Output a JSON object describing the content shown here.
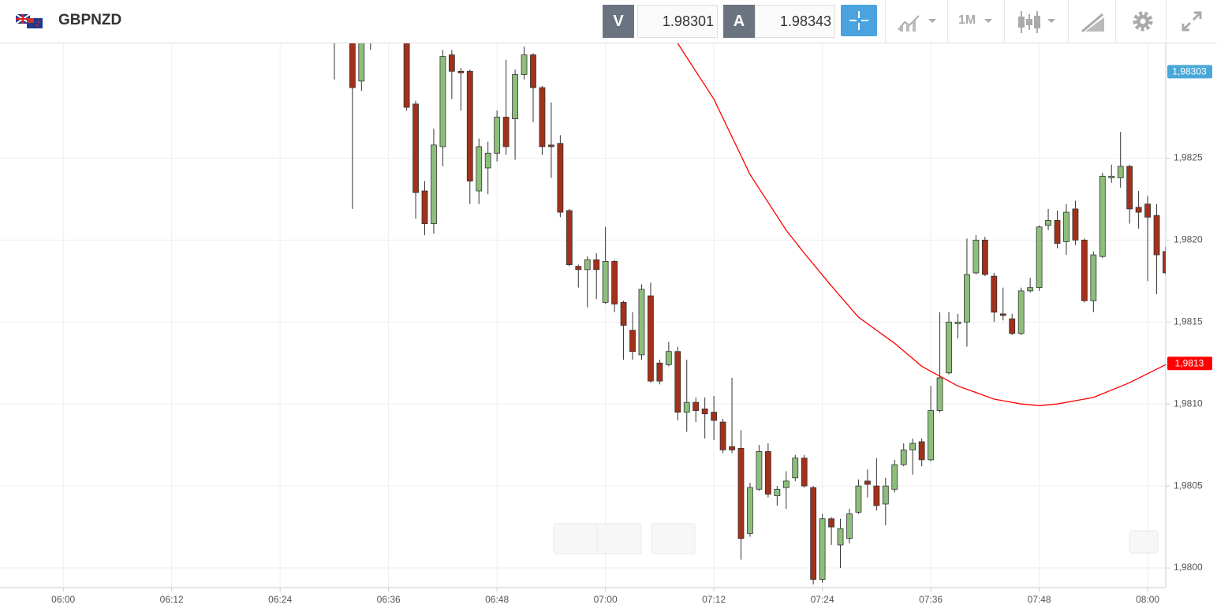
{
  "toolbar": {
    "symbol": "GBPNZD",
    "bid_label": "V",
    "bid": "1.98301",
    "ask_label": "A",
    "ask": "1.98343",
    "timeframe": "1M"
  },
  "chart_data": {
    "type": "candlestick",
    "x": [
      "06:30",
      "06:32",
      "06:33",
      "06:34",
      "06:38",
      "06:39",
      "06:40",
      "06:41",
      "06:42",
      "06:43",
      "06:44",
      "06:45",
      "06:46",
      "06:47",
      "06:48",
      "06:49",
      "06:50",
      "06:51",
      "06:52",
      "06:53",
      "06:54",
      "06:55",
      "06:56",
      "06:57",
      "06:58",
      "06:59",
      "07:00",
      "07:01",
      "07:02",
      "07:03",
      "07:04",
      "07:05",
      "07:06",
      "07:07",
      "07:08",
      "07:09",
      "07:10",
      "07:11",
      "07:12",
      "07:13",
      "07:14",
      "07:15",
      "07:16",
      "07:17",
      "07:18",
      "07:19",
      "07:20",
      "07:21",
      "07:22",
      "07:23",
      "07:24",
      "07:25",
      "07:26",
      "07:27",
      "07:28",
      "07:29",
      "07:30",
      "07:31",
      "07:32",
      "07:33",
      "07:34",
      "07:35",
      "07:36",
      "07:37",
      "07:38",
      "07:39",
      "07:40",
      "07:41",
      "07:42",
      "07:43",
      "07:44",
      "07:45",
      "07:46",
      "07:47",
      "07:48",
      "07:49",
      "07:50",
      "07:51",
      "07:52",
      "07:53",
      "07:54",
      "07:55",
      "07:56",
      "07:57",
      "07:58",
      "07:59",
      "08:00",
      "08:01",
      "08:02"
    ],
    "open": [
      1.98322,
      1.98327,
      1.98297,
      1.98322,
      1.98325,
      1.98283,
      1.9823,
      1.9821,
      1.98257,
      1.98313,
      1.98303,
      1.98303,
      1.9823,
      1.98244,
      1.98253,
      1.98275,
      1.98274,
      1.98301,
      1.98313,
      1.98293,
      1.98258,
      1.98259,
      1.98218,
      1.98184,
      1.98182,
      1.98188,
      1.98162,
      1.98187,
      1.98162,
      1.98145,
      1.9813,
      1.98166,
      1.98125,
      1.98124,
      1.98132,
      1.98095,
      1.98101,
      1.98097,
      1.98095,
      1.98089,
      1.98074,
      1.98073,
      1.98021,
      1.98048,
      1.98071,
      1.98044,
      1.98049,
      1.98055,
      1.98067,
      1.98049,
      1.97993,
      1.9803,
      1.98014,
      1.98018,
      1.98034,
      1.98053,
      1.9805,
      1.98039,
      1.98048,
      1.98063,
      1.98072,
      1.98077,
      1.98066,
      1.98096,
      1.98119,
      1.98149,
      1.9815,
      1.9818,
      1.982,
      1.98178,
      1.98155,
      1.98152,
      1.98143,
      1.98169,
      1.98171,
      1.98209,
      1.98212,
      1.98199,
      1.98219,
      1.982,
      1.98163,
      1.9819,
      1.98238,
      1.98238,
      1.98245,
      1.9822,
      1.98222,
      1.98215,
      1.98193
    ],
    "high": [
      1.98327,
      1.98332,
      1.98329,
      1.98327,
      1.98329,
      1.98285,
      1.98236,
      1.98268,
      1.98316,
      1.98316,
      1.98305,
      1.98304,
      1.98262,
      1.9826,
      1.98279,
      1.9831,
      1.98304,
      1.98318,
      1.98314,
      1.98294,
      1.98284,
      1.98264,
      1.98219,
      1.98185,
      1.9819,
      1.98192,
      1.98208,
      1.98188,
      1.98163,
      1.98156,
      1.98173,
      1.98174,
      1.98127,
      1.98138,
      1.98135,
      1.98127,
      1.98104,
      1.98104,
      1.98105,
      1.98091,
      1.98116,
      1.98084,
      1.98052,
      1.98075,
      1.98076,
      1.9805,
      1.98059,
      1.98069,
      1.98069,
      1.9805,
      1.98033,
      1.98031,
      1.9803,
      1.98036,
      1.98054,
      1.9806,
      1.98067,
      1.98055,
      1.98066,
      1.98076,
      1.98079,
      1.98079,
      1.98111,
      1.98156,
      1.98156,
      1.98155,
      1.98201,
      1.98203,
      1.98202,
      1.9818,
      1.98171,
      1.98155,
      1.98171,
      1.98177,
      1.98209,
      1.98219,
      1.98218,
      1.98222,
      1.98224,
      1.98201,
      1.98193,
      1.98241,
      1.98246,
      1.98266,
      1.98246,
      1.9823,
      1.98227,
      1.98222,
      1.98196
    ],
    "low": [
      1.98298,
      1.98219,
      1.98291,
      1.98316,
      1.98279,
      1.98213,
      1.98203,
      1.98204,
      1.98245,
      1.98286,
      1.98279,
      1.98222,
      1.98222,
      1.98228,
      1.98248,
      1.98252,
      1.98249,
      1.98298,
      1.98272,
      1.98252,
      1.98238,
      1.98214,
      1.98184,
      1.98171,
      1.98159,
      1.98164,
      1.98161,
      1.98156,
      1.98127,
      1.98127,
      1.98127,
      1.98113,
      1.98112,
      1.98123,
      1.9809,
      1.98083,
      1.98089,
      1.98079,
      1.98078,
      1.9807,
      1.9807,
      1.98005,
      1.98019,
      1.98047,
      1.98043,
      1.98038,
      1.98036,
      1.98053,
      1.98049,
      1.9799,
      1.97991,
      1.98014,
      1.98,
      1.98015,
      1.98033,
      1.98043,
      1.98035,
      1.98026,
      1.98046,
      1.98062,
      1.98057,
      1.98062,
      1.98065,
      1.98095,
      1.98118,
      1.9814,
      1.98135,
      1.98179,
      1.98178,
      1.9815,
      1.98151,
      1.98142,
      1.98142,
      1.98168,
      1.98169,
      1.98206,
      1.98195,
      1.98191,
      1.98197,
      1.98162,
      1.98156,
      1.98189,
      1.98235,
      1.98232,
      1.9821,
      1.98207,
      1.98175,
      1.98167,
      1.98179
    ],
    "close": [
      1.98321,
      1.98293,
      1.98325,
      1.98323,
      1.98281,
      1.98229,
      1.9821,
      1.98258,
      1.98312,
      1.98303,
      1.98302,
      1.98236,
      1.98257,
      1.98253,
      1.98275,
      1.98257,
      1.98301,
      1.98313,
      1.98293,
      1.98257,
      1.98257,
      1.98217,
      1.98185,
      1.98182,
      1.98188,
      1.98182,
      1.98187,
      1.98161,
      1.98148,
      1.98132,
      1.9817,
      1.98114,
      1.98114,
      1.98132,
      1.98095,
      1.98101,
      1.98096,
      1.98094,
      1.9809,
      1.98072,
      1.98072,
      1.98018,
      1.98049,
      1.98071,
      1.98045,
      1.98048,
      1.98053,
      1.98067,
      1.9805,
      1.97993,
      1.9803,
      1.98025,
      1.98024,
      1.98033,
      1.9805,
      1.98051,
      1.98038,
      1.9805,
      1.98063,
      1.98072,
      1.98076,
      1.98066,
      1.98096,
      1.98116,
      1.9815,
      1.9815,
      1.98179,
      1.982,
      1.98179,
      1.98156,
      1.98154,
      1.98143,
      1.98169,
      1.98171,
      1.98208,
      1.98212,
      1.98198,
      1.98217,
      1.982,
      1.98163,
      1.98191,
      1.98239,
      1.98239,
      1.98245,
      1.98219,
      1.98217,
      1.98214,
      1.98191,
      1.9818
    ],
    "up_color": "#8dbf7b",
    "down_color": "#a3311a",
    "wick_color": "#333333",
    "moving_average": {
      "color": "#ff0000",
      "x": [
        "07:08",
        "07:12",
        "07:16",
        "07:20",
        "07:22",
        "07:25",
        "07:28",
        "07:32",
        "07:35",
        "07:39",
        "07:43",
        "07:46",
        "07:48",
        "07:50",
        "07:54",
        "07:58",
        "08:02"
      ],
      "values": [
        1.9832,
        1.98286,
        1.9824,
        1.98206,
        1.98192,
        1.98172,
        1.98153,
        1.98137,
        1.98123,
        1.98111,
        1.98103,
        1.981,
        1.98099,
        1.981,
        1.98104,
        1.98113,
        1.98124
      ]
    },
    "price_tags": [
      {
        "value": 1.98303,
        "label": "1,98303",
        "color": "#4aa8d8"
      },
      {
        "value": 1.98125,
        "label": "1,9813",
        "color": "#ff0000"
      }
    ],
    "xlim": [
      "05:53",
      "08:02"
    ],
    "ylim": [
      1.97988,
      1.9832
    ],
    "xticks": [
      "06:00",
      "06:12",
      "06:24",
      "06:36",
      "06:48",
      "07:00",
      "07:12",
      "07:24",
      "07:36",
      "07:48",
      "08:00"
    ],
    "yticks": [
      {
        "value": 1.98,
        "label": "1,9800"
      },
      {
        "value": 1.9805,
        "label": "1,9805"
      },
      {
        "value": 1.981,
        "label": "1,9810"
      },
      {
        "value": 1.9815,
        "label": "1,9815"
      },
      {
        "value": 1.982,
        "label": "1,9820"
      },
      {
        "value": 1.9825,
        "label": "1,9825"
      }
    ],
    "grid": true
  }
}
